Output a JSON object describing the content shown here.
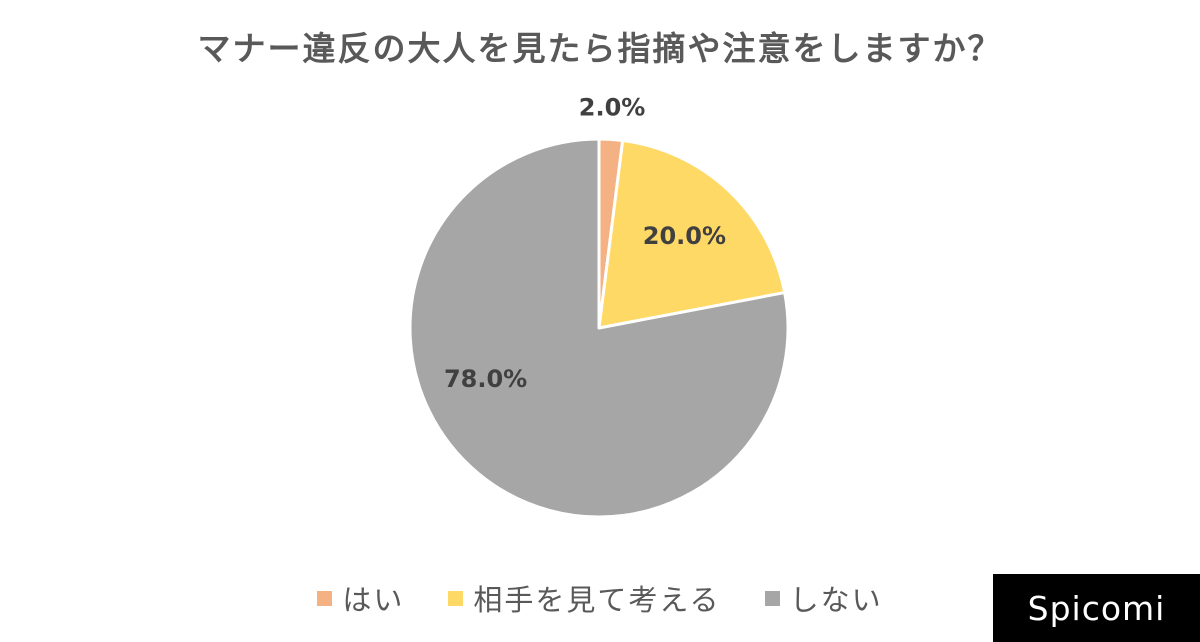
{
  "brand": "Spicomi",
  "chart_data": {
    "type": "pie",
    "title": "マナー違反の大人を見たら指摘や注意をしますか？",
    "categories": [
      "はい",
      "相手を見て考える",
      "しない"
    ],
    "values": [
      2.0,
      20.0,
      78.0
    ],
    "labels": [
      "2.0%",
      "20.0%",
      "78.0%"
    ],
    "colors": [
      "#F4B183",
      "#FFD966",
      "#A6A6A6"
    ],
    "start_angle": "12 o'clock",
    "direction": "clockwise",
    "legend": "bottom"
  }
}
